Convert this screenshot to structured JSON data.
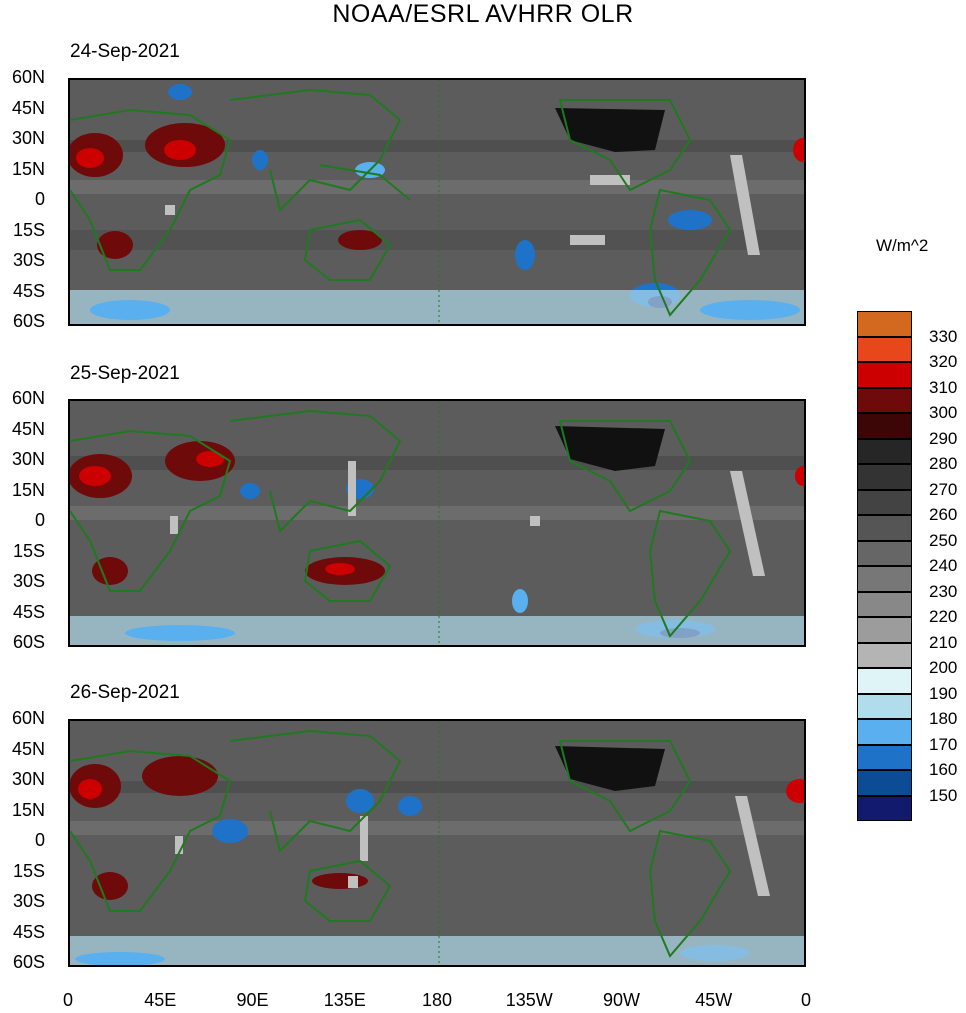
{
  "title": "NOAA/ESRL AVHRR OLR",
  "panels": [
    {
      "date": "24-Sep-2021"
    },
    {
      "date": "25-Sep-2021"
    },
    {
      "date": "26-Sep-2021"
    }
  ],
  "lat_labels": [
    "60N",
    "45N",
    "30N",
    "15N",
    "0",
    "15S",
    "30S",
    "45S",
    "60S"
  ],
  "lon_labels": [
    "0",
    "45E",
    "90E",
    "135E",
    "180",
    "135W",
    "90W",
    "45W",
    "0"
  ],
  "colorbar": {
    "unit": "W/m^2",
    "levels": [
      "330",
      "320",
      "310",
      "300",
      "290",
      "280",
      "270",
      "260",
      "250",
      "240",
      "230",
      "220",
      "210",
      "200",
      "190",
      "180",
      "170",
      "160",
      "150"
    ],
    "colors": [
      "#d2691e",
      "#e8471c",
      "#cc0000",
      "#6e0a0a",
      "#3c0606",
      "#262626",
      "#333333",
      "#434343",
      "#555555",
      "#666666",
      "#777777",
      "#888888",
      "#9c9c9c",
      "#b4b4b4",
      "#dff4f6",
      "#b0dcec",
      "#5ab0ee",
      "#1e73c8",
      "#0c4c94",
      "#121a6e"
    ]
  },
  "map_colors": {
    "land": "#1f7a1f",
    "missing": "#c0c0c0"
  }
}
